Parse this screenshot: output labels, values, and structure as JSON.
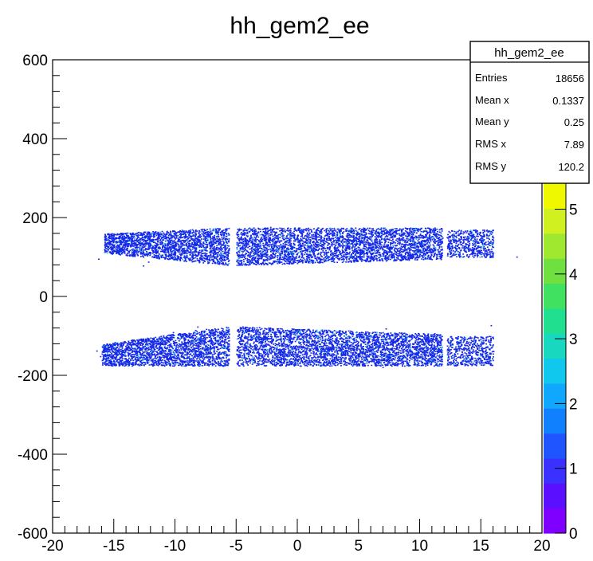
{
  "chart_data": {
    "type": "heatmap",
    "title": "hh_gem2_ee",
    "xlabel": "",
    "ylabel": "",
    "xlim": [
      -20,
      20
    ],
    "ylim": [
      -600,
      600
    ],
    "x_ticks": [
      "-20",
      "-15",
      "-10",
      "-5",
      "0",
      "5",
      "10",
      "15",
      "20"
    ],
    "y_ticks": [
      "-600",
      "-400",
      "-200",
      "0",
      "200",
      "400",
      "600"
    ],
    "colorbar": {
      "range": [
        0,
        5.4
      ],
      "ticks": [
        "0",
        "1",
        "2",
        "3",
        "4",
        "5"
      ],
      "palette": [
        "#7f00ff",
        "#5a10ff",
        "#3a30ff",
        "#1f55ff",
        "#1080ff",
        "#10a8ff",
        "#10c8ee",
        "#18d8c0",
        "#20e090",
        "#40e060",
        "#70e040",
        "#a0e830",
        "#d0f020",
        "#f0f800"
      ]
    },
    "point_color": "#1428e8",
    "accent_color": "#22b6e8",
    "bands": [
      {
        "x": [
          -15.8,
          -5.6
        ],
        "y_top": [
          160,
          175
        ],
        "y_bottom": [
          110,
          80
        ],
        "density": "high"
      },
      {
        "x": [
          -5.0,
          11.8
        ],
        "y_top": [
          175,
          175
        ],
        "y_bottom": [
          80,
          95
        ],
        "density": "high"
      },
      {
        "x": [
          12.2,
          16.0
        ],
        "y_top": [
          170,
          170
        ],
        "y_bottom": [
          100,
          100
        ],
        "density": "medium"
      },
      {
        "x": [
          -16.0,
          -5.6
        ],
        "y_top": [
          -120,
          -75
        ],
        "y_bottom": [
          -175,
          -175
        ],
        "density": "high"
      },
      {
        "x": [
          -5.0,
          11.8
        ],
        "y_top": [
          -75,
          -95
        ],
        "y_bottom": [
          -175,
          -175
        ],
        "density": "high"
      },
      {
        "x": [
          12.2,
          16.0
        ],
        "y_top": [
          -100,
          -100
        ],
        "y_bottom": [
          -175,
          -175
        ],
        "density": "medium"
      }
    ],
    "stats": {
      "title": "hh_gem2_ee",
      "rows": [
        {
          "label": "Entries",
          "value": "18656"
        },
        {
          "label": "Mean x",
          "value": "0.1337"
        },
        {
          "label": "Mean y",
          "value": "0.25"
        },
        {
          "label": "RMS x",
          "value": "7.89"
        },
        {
          "label": "RMS y",
          "value": "120.2"
        }
      ]
    }
  }
}
